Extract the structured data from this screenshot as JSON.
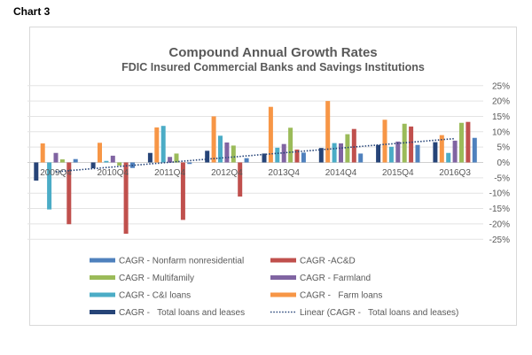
{
  "page_label": "Chart 3",
  "chart_data": {
    "type": "bar",
    "title": "Compound Annual Growth Rates",
    "subtitle": "FDIC Insured Commercial Banks and Savings Institutions",
    "categories": [
      "2009Q4",
      "2010Q4",
      "2011Q4",
      "2012Q4",
      "2013Q4",
      "2014Q4",
      "2015Q4",
      "2016Q3"
    ],
    "ylim": [
      -25,
      25
    ],
    "yticks": [
      25,
      20,
      15,
      10,
      5,
      0,
      -5,
      -10,
      -15,
      -20,
      -25
    ],
    "ytick_labels": [
      "25%",
      "20%",
      "15%",
      "10%",
      "5%",
      "0%",
      "-5%",
      "-10%",
      "-15%",
      "-20%",
      "-25%"
    ],
    "y_axis_side": "right",
    "grid": true,
    "legend_placement": "bottom",
    "series": [
      {
        "name": "CAGR -   Total loans and leases",
        "color": "#264478",
        "values": [
          -5.9,
          -1.9,
          3.1,
          3.8,
          2.9,
          4.7,
          5.7,
          6.6
        ]
      },
      {
        "name": "CAGR -   Farm loans",
        "color": "#F79646",
        "values": [
          6.2,
          6.4,
          11.4,
          15.0,
          18.1,
          20.0,
          13.9,
          8.9
        ]
      },
      {
        "name": "CAGR - C&I loans",
        "color": "#4BACC6",
        "values": [
          -15.3,
          0.5,
          11.9,
          8.7,
          4.8,
          6.3,
          5.1,
          3.1
        ]
      },
      {
        "name": "CAGR - Farmland",
        "color": "#8064A2",
        "values": [
          3.1,
          2.2,
          1.8,
          6.5,
          6.0,
          6.2,
          6.8,
          7.1
        ]
      },
      {
        "name": "CAGR - Multifamily",
        "color": "#9BBB59",
        "values": [
          1.0,
          -1.0,
          2.9,
          5.5,
          11.3,
          9.2,
          12.6,
          12.9
        ]
      },
      {
        "name": "CAGR -AC&D",
        "color": "#C0504D",
        "values": [
          -20.1,
          -23.2,
          -18.7,
          -11.1,
          4.2,
          10.9,
          11.7,
          13.2
        ]
      },
      {
        "name": "CAGR - Nonfarm nonresidential",
        "color": "#4F81BD",
        "values": [
          1.1,
          -1.8,
          -0.5,
          1.4,
          3.2,
          2.9,
          5.7,
          8.0
        ]
      }
    ],
    "trendline": {
      "name": "Linear (CAGR -   Total loans and leases)",
      "type": "linear",
      "of_series": "CAGR -   Total loans and leases",
      "color": "#264478",
      "style": "dotted"
    },
    "legend_order": [
      "CAGR - Nonfarm nonresidential",
      "CAGR -AC&D",
      "CAGR - Multifamily",
      "CAGR - Farmland",
      "CAGR - C&I loans",
      "CAGR -   Farm loans",
      "CAGR -   Total loans and leases",
      "Linear (CAGR -   Total loans and leases)"
    ]
  }
}
